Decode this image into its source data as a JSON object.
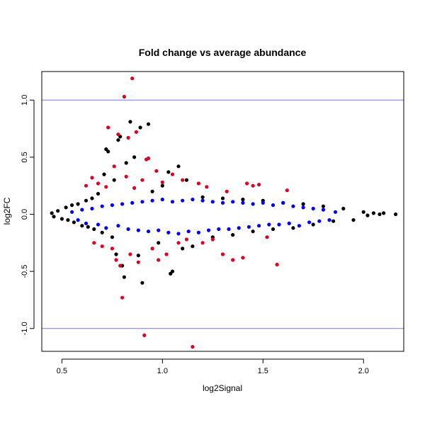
{
  "chart_data": {
    "type": "scatter",
    "title": "Fold change vs average abundance",
    "xlabel": "log2Signal",
    "ylabel": "log2FC",
    "xlim": [
      0.4,
      2.2
    ],
    "ylim": [
      -1.2,
      1.25
    ],
    "xticks": [
      0.5,
      1.0,
      1.5,
      2.0
    ],
    "xtick_labels": [
      "0.5",
      "1.0",
      "1.5",
      "2.0"
    ],
    "yticks": [
      -1.0,
      -0.5,
      0.0,
      0.5,
      1.0
    ],
    "ytick_labels": [
      "-1.0",
      "-0.5",
      "0.0",
      "0.5",
      "1.0"
    ],
    "grid": false,
    "reference_lines": {
      "y": [
        -1.0,
        1.0
      ],
      "color": "#7777dd"
    },
    "series": [
      {
        "color": "#000000",
        "points": [
          [
            0.45,
            0.01
          ],
          [
            0.46,
            -0.02
          ],
          [
            0.48,
            0.03
          ],
          [
            0.5,
            -0.04
          ],
          [
            0.52,
            0.06
          ],
          [
            0.53,
            -0.05
          ],
          [
            0.55,
            0.08
          ],
          [
            0.56,
            -0.07
          ],
          [
            0.58,
            0.09
          ],
          [
            0.6,
            -0.1
          ],
          [
            0.62,
            0.12
          ],
          [
            0.63,
            -0.11
          ],
          [
            0.65,
            0.14
          ],
          [
            0.66,
            -0.13
          ],
          [
            0.68,
            0.18
          ],
          [
            0.7,
            -0.16
          ],
          [
            0.71,
            0.35
          ],
          [
            0.72,
            0.57
          ],
          [
            0.73,
            0.55
          ],
          [
            0.75,
            -0.2
          ],
          [
            0.76,
            0.3
          ],
          [
            0.77,
            -0.35
          ],
          [
            0.78,
            0.65
          ],
          [
            0.79,
            0.68
          ],
          [
            0.8,
            -0.45
          ],
          [
            0.81,
            -0.55
          ],
          [
            0.82,
            0.45
          ],
          [
            0.84,
            0.81
          ],
          [
            0.86,
            0.5
          ],
          [
            0.88,
            -0.36
          ],
          [
            0.89,
            0.76
          ],
          [
            0.9,
            -0.6
          ],
          [
            0.93,
            0.79
          ],
          [
            0.95,
            0.2
          ],
          [
            0.98,
            -0.25
          ],
          [
            1.0,
            0.25
          ],
          [
            1.03,
            0.37
          ],
          [
            1.04,
            -0.52
          ],
          [
            1.05,
            -0.5
          ],
          [
            1.08,
            0.42
          ],
          [
            1.1,
            -0.3
          ],
          [
            1.12,
            0.3
          ],
          [
            1.15,
            -0.28
          ],
          [
            1.2,
            0.15
          ],
          [
            1.25,
            -0.2
          ],
          [
            1.3,
            0.14
          ],
          [
            1.35,
            -0.18
          ],
          [
            1.4,
            0.13
          ],
          [
            1.45,
            -0.15
          ],
          [
            1.5,
            0.12
          ],
          [
            1.55,
            -0.13
          ],
          [
            1.6,
            0.1
          ],
          [
            1.65,
            -0.12
          ],
          [
            1.7,
            0.09
          ],
          [
            1.75,
            -0.09
          ],
          [
            1.8,
            0.07
          ],
          [
            1.85,
            -0.06
          ],
          [
            1.9,
            0.05
          ],
          [
            1.95,
            -0.05
          ],
          [
            2.0,
            0.02
          ],
          [
            2.02,
            -0.01
          ],
          [
            2.05,
            0.01
          ],
          [
            2.08,
            0.0
          ],
          [
            2.1,
            0.01
          ],
          [
            2.16,
            0.0
          ]
        ]
      },
      {
        "color": "#0000ff",
        "points": [
          [
            0.55,
            0.02
          ],
          [
            0.58,
            -0.05
          ],
          [
            0.6,
            0.04
          ],
          [
            0.62,
            -0.08
          ],
          [
            0.65,
            0.05
          ],
          [
            0.68,
            -0.09
          ],
          [
            0.7,
            0.07
          ],
          [
            0.72,
            -0.12
          ],
          [
            0.75,
            0.08
          ],
          [
            0.78,
            -0.1
          ],
          [
            0.8,
            0.09
          ],
          [
            0.83,
            -0.13
          ],
          [
            0.85,
            0.1
          ],
          [
            0.88,
            -0.14
          ],
          [
            0.9,
            0.11
          ],
          [
            0.93,
            -0.15
          ],
          [
            0.95,
            0.12
          ],
          [
            0.98,
            -0.14
          ],
          [
            1.0,
            0.13
          ],
          [
            1.03,
            -0.16
          ],
          [
            1.05,
            0.11
          ],
          [
            1.08,
            -0.17
          ],
          [
            1.1,
            0.12
          ],
          [
            1.13,
            -0.15
          ],
          [
            1.15,
            0.13
          ],
          [
            1.18,
            -0.16
          ],
          [
            1.2,
            0.12
          ],
          [
            1.23,
            -0.14
          ],
          [
            1.25,
            0.11
          ],
          [
            1.28,
            -0.13
          ],
          [
            1.3,
            0.1
          ],
          [
            1.33,
            -0.13
          ],
          [
            1.35,
            0.11
          ],
          [
            1.38,
            -0.12
          ],
          [
            1.4,
            0.1
          ],
          [
            1.43,
            -0.11
          ],
          [
            1.45,
            0.09
          ],
          [
            1.48,
            -0.1
          ],
          [
            1.5,
            0.1
          ],
          [
            1.53,
            -0.09
          ],
          [
            1.55,
            0.08
          ],
          [
            1.58,
            -0.09
          ],
          [
            1.6,
            0.1
          ],
          [
            1.63,
            -0.08
          ],
          [
            1.65,
            0.07
          ],
          [
            1.68,
            -0.1
          ],
          [
            1.7,
            0.06
          ],
          [
            1.73,
            -0.07
          ],
          [
            1.75,
            0.05
          ],
          [
            1.78,
            -0.06
          ],
          [
            1.8,
            0.04
          ],
          [
            1.83,
            -0.05
          ],
          [
            1.86,
            0.02
          ]
        ]
      },
      {
        "color": "#dd0022",
        "points": [
          [
            0.62,
            0.25
          ],
          [
            0.65,
            0.32
          ],
          [
            0.66,
            -0.25
          ],
          [
            0.68,
            0.27
          ],
          [
            0.7,
            -0.28
          ],
          [
            0.72,
            0.24
          ],
          [
            0.73,
            0.76
          ],
          [
            0.75,
            -0.3
          ],
          [
            0.76,
            0.42
          ],
          [
            0.77,
            -0.4
          ],
          [
            0.78,
            0.7
          ],
          [
            0.79,
            -0.45
          ],
          [
            0.8,
            -0.73
          ],
          [
            0.81,
            1.03
          ],
          [
            0.82,
            0.33
          ],
          [
            0.83,
            0.67
          ],
          [
            0.84,
            -0.35
          ],
          [
            0.85,
            1.19
          ],
          [
            0.86,
            0.23
          ],
          [
            0.87,
            0.72
          ],
          [
            0.88,
            -0.42
          ],
          [
            0.9,
            0.3
          ],
          [
            0.91,
            -1.06
          ],
          [
            0.92,
            0.48
          ],
          [
            0.93,
            0.49
          ],
          [
            0.95,
            -0.3
          ],
          [
            0.97,
            0.38
          ],
          [
            0.98,
            -0.4
          ],
          [
            1.0,
            0.28
          ],
          [
            1.02,
            -0.35
          ],
          [
            1.05,
            0.35
          ],
          [
            1.08,
            -0.25
          ],
          [
            1.1,
            0.3
          ],
          [
            1.12,
            -0.22
          ],
          [
            1.15,
            -1.16
          ],
          [
            1.18,
            0.27
          ],
          [
            1.2,
            -0.25
          ],
          [
            1.22,
            0.24
          ],
          [
            1.25,
            -0.22
          ],
          [
            1.3,
            -0.35
          ],
          [
            1.32,
            0.2
          ],
          [
            1.35,
            -0.4
          ],
          [
            1.4,
            -0.38
          ],
          [
            1.42,
            0.27
          ],
          [
            1.45,
            0.25
          ],
          [
            1.48,
            0.26
          ],
          [
            1.52,
            -0.2
          ],
          [
            1.57,
            -0.44
          ],
          [
            1.62,
            0.21
          ]
        ]
      }
    ]
  }
}
